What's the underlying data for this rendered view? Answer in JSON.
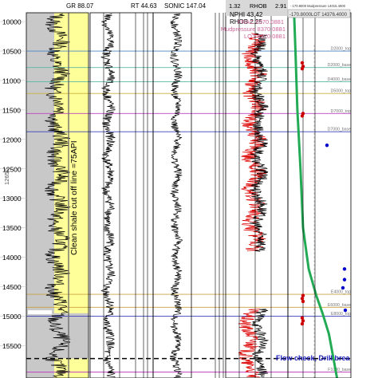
{
  "chart_data": {
    "type": "line",
    "title": "",
    "ylabel": "12650",
    "depth_ticks": [
      "10000",
      "10500",
      "11000",
      "11500",
      "12000",
      "12500",
      "13000",
      "13500",
      "14000",
      "14500",
      "15000",
      "15500"
    ],
    "depth_range": [
      9850,
      16050
    ],
    "track_headers": {
      "gr": "GR 88.07",
      "rt": "RT 44.63",
      "sonic": "SONIC 147.04",
      "nphi": "NPHI 43.42",
      "rhob": "RHOB 2.25",
      "scale_left": "1.32",
      "scale_rhob": "RHOB",
      "scale_right": "2.91",
      "pressure_header_1": "- 170.8000 Mudpressure 14015.4000",
      "pressure_header_2": "-170.8000LOT 14376.4000",
      "frac": "FRAC 8370.0881",
      "mudpressure": "Mudpressure 8370.0881",
      "lot": "LOT 8370.0881"
    },
    "annotations": {
      "shale_cutoff": "Clean shale cut off line =75API",
      "flow_check": "Flow check, Drill brea"
    },
    "formation_tops": [
      {
        "name": "D2000_top",
        "depth": 10500,
        "color": "#4a86c8"
      },
      {
        "name": "D2000_base",
        "depth": 10780,
        "color": "#58b8a8"
      },
      {
        "name": "D4000_base",
        "depth": 11020,
        "color": "#58b8a8"
      },
      {
        "name": "D5000_top",
        "depth": 11220,
        "color": "#c8b040"
      },
      {
        "name": "D7000_top",
        "depth": 11560,
        "color": "#c040c0"
      },
      {
        "name": "D7000_base",
        "depth": 11870,
        "color": "#3a40b8"
      },
      {
        "name": "E4000_top",
        "depth": 14630,
        "color": "#c8a040"
      },
      {
        "name": "E6000_base",
        "depth": 14850,
        "color": "#c8a040"
      },
      {
        "name": "E8000_top",
        "depth": 15000,
        "color": "#3a40b8"
      },
      {
        "name": "F1000_base",
        "depth": 15950,
        "color": "#c040c0"
      }
    ],
    "mud_weight_curve": [
      {
        "x": 0.1,
        "depth": 9900
      },
      {
        "x": 0.12,
        "depth": 10500
      },
      {
        "x": 0.15,
        "depth": 11500
      },
      {
        "x": 0.2,
        "depth": 12500
      },
      {
        "x": 0.24,
        "depth": 13500
      },
      {
        "x": 0.33,
        "depth": 14200
      },
      {
        "x": 0.45,
        "depth": 14650
      },
      {
        "x": 0.55,
        "depth": 14950
      },
      {
        "x": 0.65,
        "depth": 15300
      },
      {
        "x": 0.72,
        "depth": 15700
      },
      {
        "x": 0.78,
        "depth": 16050
      }
    ],
    "pressure_points_red": [
      10700,
      10760,
      10800,
      11560,
      11600,
      14650,
      14700,
      14750,
      15030,
      15080,
      15130
    ],
    "pressure_points_blue": [
      12100,
      14200,
      14380,
      14520,
      14900
    ],
    "casing_shoe_depth": 15720,
    "colors": {
      "gr_fill": "#ffff99",
      "shale_fill": "#c8c8c8",
      "mud_curve": "#22aa55",
      "nphi": "#dd0000",
      "rhob": "#000000",
      "pressure_red": "#cc0000",
      "pressure_blue": "#0000cc",
      "flow_check_text": "#1a1ab8"
    }
  }
}
